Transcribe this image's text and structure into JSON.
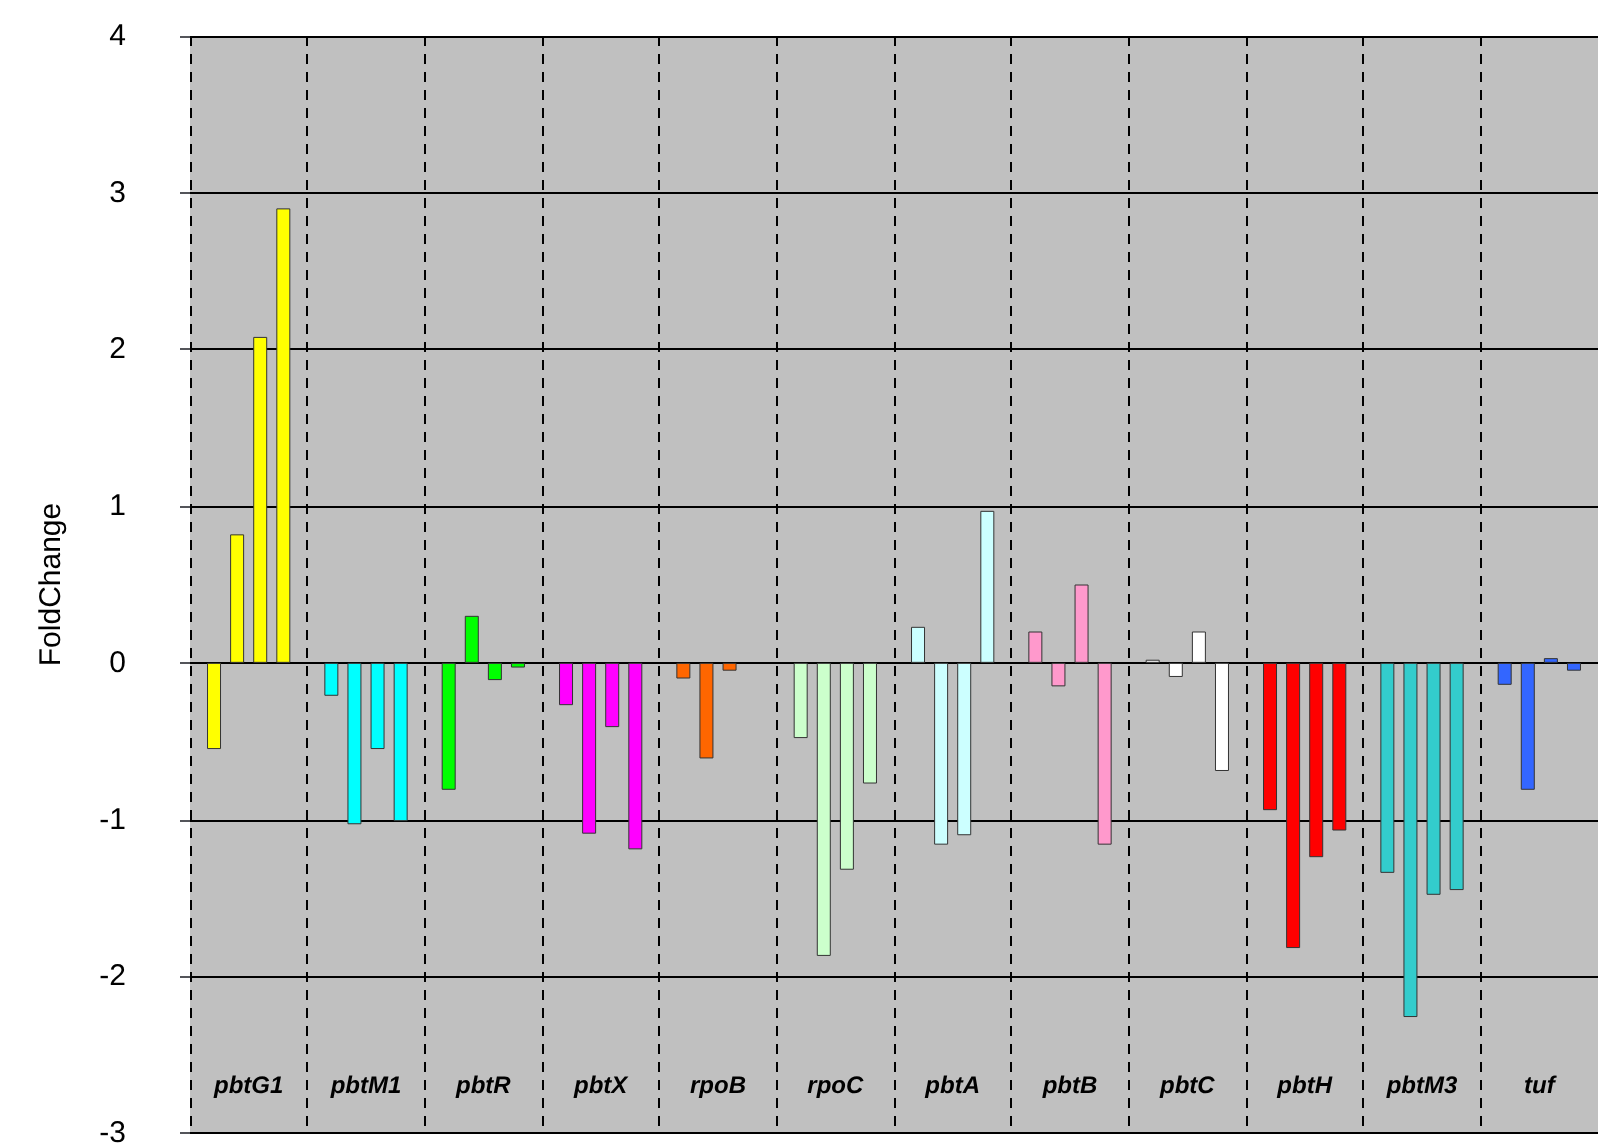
{
  "chart_data": {
    "type": "bar",
    "ylabel": "FoldChange",
    "categories": [
      "pbtG1",
      "pbtM1",
      "pbtR",
      "pbtX",
      "rpoB",
      "rpoC",
      "pbtA",
      "pbtB",
      "pbtC",
      "pbtH",
      "pbtM3",
      "tuf"
    ],
    "series": [
      {
        "colors": [
          "#ffff00",
          "#00ffff",
          "#00ff00",
          "#ff00ff",
          "#ff6600",
          "#ccffcc",
          "#ccffff",
          "#ff99cc",
          "#ffffff",
          "#ff0000",
          "#33cccc",
          "#3366ff"
        ],
        "values": [
          -0.55,
          -0.21,
          -0.81,
          -0.27,
          -0.1,
          -0.48,
          0.23,
          0.2,
          0.02,
          -0.94,
          -1.34,
          -0.14
        ]
      },
      {
        "colors": [
          "#ffff00",
          "#00ffff",
          "#00ff00",
          "#ff00ff",
          "#ff6600",
          "#ccffcc",
          "#ccffff",
          "#ff99cc",
          "#ffffff",
          "#ff0000",
          "#33cccc",
          "#3366ff"
        ],
        "values": [
          0.82,
          -1.03,
          0.3,
          -1.09,
          -0.61,
          -1.87,
          -1.16,
          -0.15,
          -0.09,
          -1.82,
          -2.26,
          -0.81
        ]
      },
      {
        "colors": [
          "#ffff00",
          "#00ffff",
          "#00ff00",
          "#ff00ff",
          "#ff6600",
          "#ccffcc",
          "#ccffff",
          "#ff99cc",
          "#ffffff",
          "#ff0000",
          "#33cccc",
          "#3366ff"
        ],
        "values": [
          2.08,
          -0.55,
          -0.11,
          -0.41,
          -0.05,
          -1.32,
          -1.1,
          0.5,
          0.2,
          -1.24,
          -1.48,
          0.03
        ]
      },
      {
        "colors": [
          "#ffff00",
          "#00ffff",
          "#00ff00",
          "#ff00ff",
          "#ff6600",
          "#ccffcc",
          "#ccffff",
          "#ff99cc",
          "#ffffff",
          "#ff0000",
          "#33cccc",
          "#3366ff"
        ],
        "values": [
          2.9,
          -1.01,
          -0.03,
          -1.19,
          null,
          -0.77,
          0.97,
          -1.16,
          -0.69,
          -1.07,
          -1.45,
          -0.05
        ]
      }
    ],
    "ylim": [
      -3,
      4
    ],
    "yticks": [
      -3,
      -2,
      -1,
      0,
      1,
      2,
      3,
      4
    ],
    "grid": true
  }
}
